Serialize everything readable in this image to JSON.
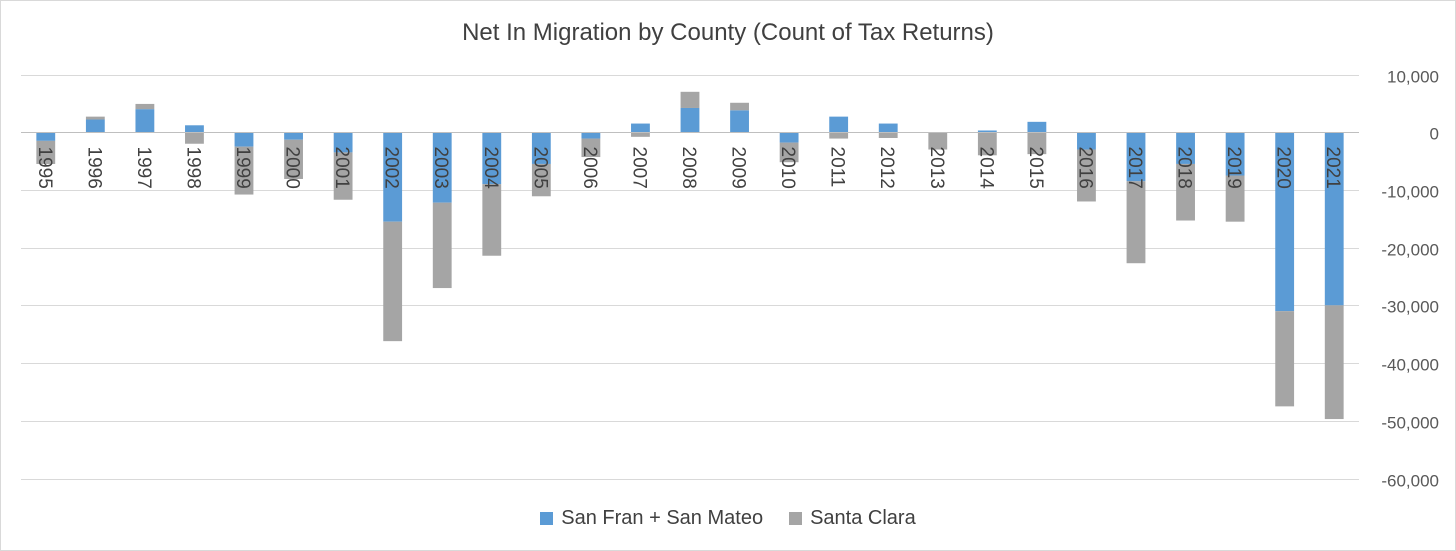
{
  "chart_data": {
    "type": "bar",
    "stacked": true,
    "title": "Net In Migration by County (Count of Tax Returns)",
    "xlabel": "",
    "ylabel": "",
    "categories": [
      "1995",
      "1996",
      "1997",
      "1998",
      "1999",
      "2000",
      "2001",
      "2002",
      "2003",
      "2004",
      "2005",
      "2006",
      "2007",
      "2008",
      "2009",
      "2010",
      "2011",
      "2012",
      "2013",
      "2014",
      "2015",
      "2016",
      "2017",
      "2018",
      "2019",
      "2020",
      "2021"
    ],
    "series": [
      {
        "name": "San Fran + San Mateo",
        "color": "#5b9bd5",
        "values": [
          -1500,
          2200,
          4000,
          1200,
          -2500,
          -1300,
          -3500,
          -15500,
          -12200,
          -9000,
          -5500,
          -1100,
          1500,
          4200,
          3800,
          -1800,
          2700,
          1500,
          0,
          300,
          1800,
          -3000,
          -8500,
          -5500,
          -7500,
          -31000,
          -30000
        ]
      },
      {
        "name": "Santa Clara",
        "color": "#a5a5a5",
        "values": [
          -4000,
          500,
          900,
          -2000,
          -8300,
          -6800,
          -8200,
          -20700,
          -14800,
          -12400,
          -5600,
          -3200,
          -800,
          2800,
          1300,
          -3400,
          -1100,
          -1000,
          -3000,
          -4000,
          -3800,
          -9000,
          -14200,
          -9800,
          -8000,
          -16500,
          -19700
        ]
      }
    ],
    "ylim": [
      -60000,
      10000
    ],
    "yticks": [
      10000,
      0,
      -10000,
      -20000,
      -30000,
      -40000,
      -50000,
      -60000
    ],
    "ytick_labels": [
      "10,000",
      "0",
      "-10,000",
      "-20,000",
      "-30,000",
      "-40,000",
      "-50,000",
      "-60,000"
    ],
    "grid": true,
    "legend_position": "bottom"
  }
}
